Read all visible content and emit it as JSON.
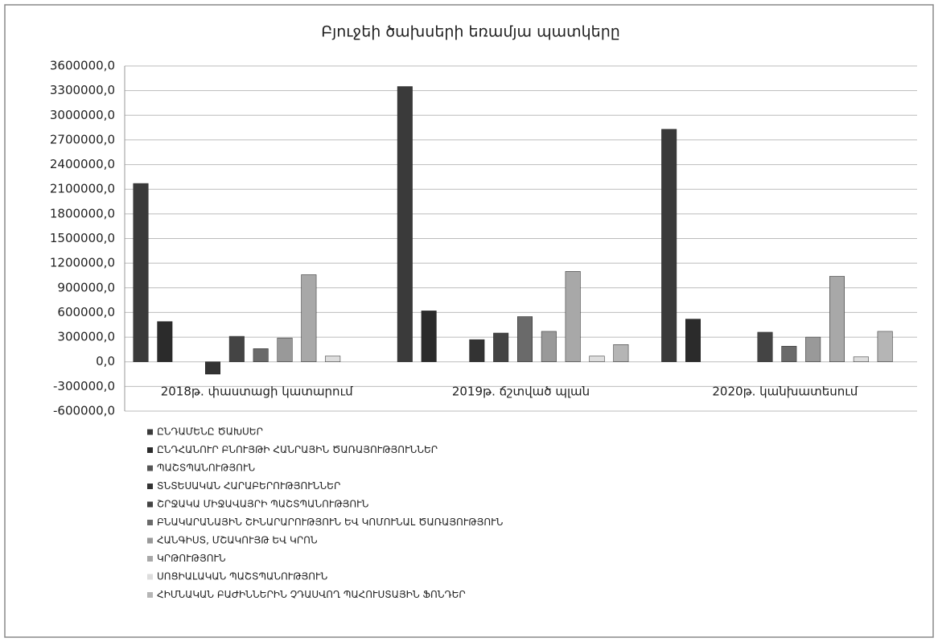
{
  "chart_data": {
    "type": "bar",
    "title": "Բյուջեի ծախսերի եռամյա պատկերը",
    "categories": [
      "2018թ. փաստացի կատարում",
      "2019թ. ճշտված պլան",
      "2020թ. կանխատեսում"
    ],
    "series": [
      {
        "name": "ԸՆԴԱՄԵՆԸ ԾԱԽՍԵՐ",
        "color": "#3a3a3a",
        "values": [
          2170000,
          3350000,
          2830000
        ]
      },
      {
        "name": "ԸՆԴՀԱՆՈՒՐ ԲՆՈՒՅԹԻ ՀԱՆՐԱՅԻՆ ԾԱՌԱՅՈՒԹՅՈՒՆՆԵՐ",
        "color": "#2b2b2b",
        "values": [
          490000,
          620000,
          520000
        ]
      },
      {
        "name": "ՊԱՇՏՊԱՆՈՒԹՅՈՒՆ",
        "color": "#555555",
        "values": [
          0,
          0,
          0
        ]
      },
      {
        "name": "ՏՆՏԵՍԱԿԱՆ ՀԱՐԱԲԵՐՈՒԹՅՈՒՆՆԵՐ",
        "color": "#333333",
        "values": [
          -150000,
          270000,
          0
        ]
      },
      {
        "name": "ՇՐՋԱԿԱ ՄԻՋԱՎԱՅՐԻ ՊԱՇՏՊԱՆՈՒԹՅՈՒՆ",
        "color": "#444444",
        "values": [
          310000,
          350000,
          360000
        ]
      },
      {
        "name": "ԲՆԱԿԱՐԱՆԱՅԻՆ ՇԻՆԱՐԱՐՈՒԹՅՈՒՆ ԵՎ ԿՈՄՈՒՆԱԼ ԾԱՌԱՅՈՒԹՅՈՒՆ",
        "color": "#6a6a6a",
        "values": [
          160000,
          550000,
          190000
        ]
      },
      {
        "name": "ՀԱՆԳԻՍՏ, ՄՇԱԿՈՒՅԹ ԵՎ ԿՐՈՆ",
        "color": "#999999",
        "values": [
          290000,
          370000,
          300000
        ]
      },
      {
        "name": "ԿՐԹՈՒԹՅՈՒՆ",
        "color": "#a8a8a8",
        "values": [
          1060000,
          1100000,
          1040000
        ]
      },
      {
        "name": "ՍՈՑԻԱԼԱԿԱՆ ՊԱՇՏՊԱՆՈՒԹՅՈՒՆ",
        "color": "#dddddd",
        "values": [
          70000,
          70000,
          60000
        ]
      },
      {
        "name": "ՀԻՄՆԱԿԱՆ ԲԱԺԻՆՆԵՐԻՆ ՉԴԱՍՎՈՂ ՊԱՀՈՒՍՏԱՅԻՆ ՖՈՆԴԵՐ",
        "color": "#b5b5b5",
        "values": [
          0,
          210000,
          370000
        ]
      }
    ],
    "ylim": [
      -600000,
      3600000
    ],
    "yticks": [
      {
        "value": -600000,
        "label": "-600000,0"
      },
      {
        "value": -300000,
        "label": "-300000,0"
      },
      {
        "value": 0,
        "label": "0,0"
      },
      {
        "value": 300000,
        "label": "300000,0"
      },
      {
        "value": 600000,
        "label": "600000,0"
      },
      {
        "value": 900000,
        "label": "900000,0"
      },
      {
        "value": 1200000,
        "label": "1200000,0"
      },
      {
        "value": 1500000,
        "label": "1500000,0"
      },
      {
        "value": 1800000,
        "label": "1800000,0"
      },
      {
        "value": 2100000,
        "label": "2100000,0"
      },
      {
        "value": 2400000,
        "label": "2400000,0"
      },
      {
        "value": 2700000,
        "label": "2700000,0"
      },
      {
        "value": 3000000,
        "label": "3000000,0"
      },
      {
        "value": 3300000,
        "label": "3300000,0"
      },
      {
        "value": 3600000,
        "label": "3600000,0"
      }
    ],
    "grid": true,
    "legend": "bottom"
  }
}
